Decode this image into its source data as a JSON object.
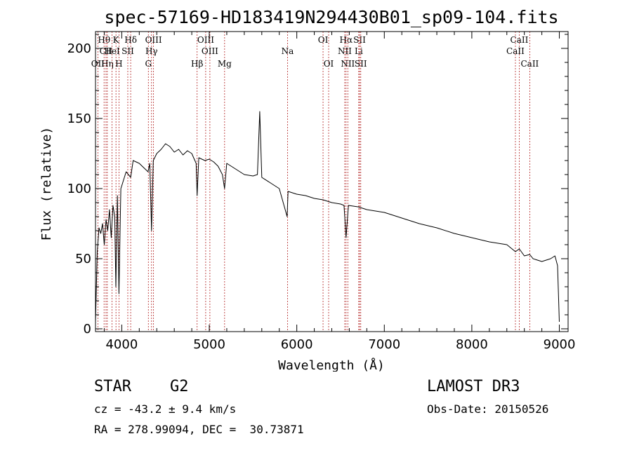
{
  "chart_data": {
    "type": "line",
    "title": "spec-57169-HD183419N294430B01_sp09-104.fits",
    "xlabel": "Wavelength (Å)",
    "ylabel": "Flux (relative)",
    "xlim": [
      3700,
      9100
    ],
    "ylim": [
      -2,
      212
    ],
    "x_ticks": [
      4000,
      5000,
      6000,
      7000,
      8000,
      9000
    ],
    "y_ticks": [
      0,
      50,
      100,
      150,
      200
    ],
    "y_tick_labels": [
      "0",
      "50",
      "100",
      "150",
      "200"
    ],
    "x_tick_labels": [
      "4000",
      "5000",
      "6000",
      "7000",
      "8000",
      "9000"
    ],
    "series": [
      {
        "name": "flux",
        "x": [
          3700,
          3720,
          3740,
          3760,
          3780,
          3800,
          3820,
          3840,
          3860,
          3880,
          3900,
          3920,
          3933,
          3950,
          3968,
          3990,
          4000,
          4050,
          4102,
          4130,
          4200,
          4250,
          4300,
          4320,
          4340,
          4360,
          4400,
          4450,
          4500,
          4550,
          4600,
          4650,
          4700,
          4750,
          4800,
          4850,
          4861,
          4880,
          4950,
          5000,
          5050,
          5100,
          5150,
          5175,
          5200,
          5300,
          5400,
          5500,
          5550,
          5577,
          5600,
          5700,
          5800,
          5890,
          5900,
          6000,
          6100,
          6200,
          6300,
          6400,
          6500,
          6540,
          6563,
          6590,
          6700,
          6800,
          6900,
          7000,
          7200,
          7400,
          7600,
          7800,
          8000,
          8200,
          8400,
          8498,
          8542,
          8600,
          8662,
          8700,
          8800,
          8900,
          8950,
          8980,
          9000
        ],
        "y": [
          5,
          55,
          72,
          68,
          75,
          60,
          78,
          70,
          85,
          65,
          88,
          80,
          30,
          95,
          25,
          100,
          102,
          112,
          108,
          120,
          118,
          115,
          112,
          118,
          70,
          120,
          125,
          128,
          132,
          130,
          126,
          128,
          124,
          127,
          125,
          118,
          95,
          122,
          120,
          121,
          119,
          116,
          110,
          100,
          118,
          114,
          110,
          109,
          110,
          155,
          108,
          104,
          100,
          80,
          98,
          96,
          95,
          93,
          92,
          90,
          89,
          88,
          65,
          88,
          87,
          85,
          84,
          83,
          79,
          75,
          72,
          68,
          65,
          62,
          60,
          55,
          57,
          52,
          53,
          50,
          48,
          50,
          52,
          45,
          5
        ]
      }
    ],
    "line_markers": [
      {
        "label": "OII",
        "wavelength": 3727,
        "row": 3
      },
      {
        "label": "Hθ",
        "wavelength": 3798,
        "row": 1
      },
      {
        "label": "Hη",
        "wavelength": 3835,
        "row": 3
      },
      {
        "label": "CII",
        "wavelength": 3820,
        "row": 2
      },
      {
        "label": "K",
        "wavelength": 3934,
        "row": 1
      },
      {
        "label": "HeI",
        "wavelength": 3889,
        "row": 2
      },
      {
        "label": "H",
        "wavelength": 3968,
        "row": 3
      },
      {
        "label": "Hδ",
        "wavelength": 4102,
        "row": 1
      },
      {
        "label": "SII",
        "wavelength": 4069,
        "row": 2
      },
      {
        "label": "OIII",
        "wavelength": 4363,
        "row": 1
      },
      {
        "label": "Hγ",
        "wavelength": 4340,
        "row": 2
      },
      {
        "label": "G",
        "wavelength": 4304,
        "row": 3
      },
      {
        "label": "Hβ",
        "wavelength": 4861,
        "row": 3
      },
      {
        "label": "OIII",
        "wavelength": 4959,
        "row": 1
      },
      {
        "label": "OIII",
        "wavelength": 5007,
        "row": 2
      },
      {
        "label": "Mg",
        "wavelength": 5175,
        "row": 3
      },
      {
        "label": "Na",
        "wavelength": 5894,
        "row": 2
      },
      {
        "label": "OI",
        "wavelength": 6300,
        "row": 1
      },
      {
        "label": "OI",
        "wavelength": 6364,
        "row": 3
      },
      {
        "label": "Hα",
        "wavelength": 6563,
        "row": 1
      },
      {
        "label": "NII",
        "wavelength": 6548,
        "row": 2
      },
      {
        "label": "NII",
        "wavelength": 6583,
        "row": 3
      },
      {
        "label": "SII",
        "wavelength": 6717,
        "row": 1
      },
      {
        "label": "Li",
        "wavelength": 6708,
        "row": 2
      },
      {
        "label": "SII",
        "wavelength": 6731,
        "row": 3
      },
      {
        "label": "CaII",
        "wavelength": 8542,
        "row": 1
      },
      {
        "label": "CaII",
        "wavelength": 8498,
        "row": 2
      },
      {
        "label": "CaII",
        "wavelength": 8662,
        "row": 3
      }
    ]
  },
  "info": {
    "class": "STAR",
    "subclass": "G2",
    "survey": "LAMOST DR3",
    "cz": "cz = -43.2 ± 9.4 km/s",
    "obs_date": "Obs-Date: 20150526",
    "radec": "RA = 278.99094, DEC =  30.73871"
  },
  "colors": {
    "marker_line": "#b22222",
    "spectrum": "#000000"
  }
}
